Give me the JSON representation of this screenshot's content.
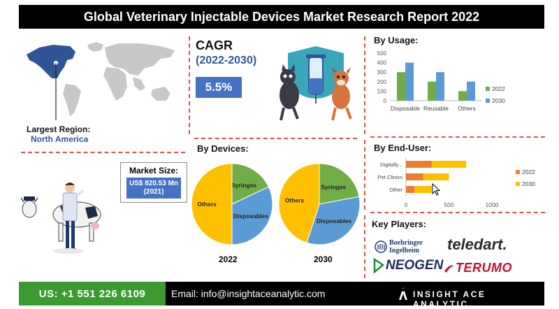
{
  "header": {
    "title": "Global Veterinary Injectable Devices Market Research Report 2022"
  },
  "region": {
    "label": "Largest Region:",
    "value": "North America"
  },
  "market": {
    "label": "Market Size:",
    "value": "US$ 820.53 Mn (2021)"
  },
  "cagr": {
    "title": "CAGR",
    "period": "(2022-2030)",
    "value": "5.5%"
  },
  "sections": {
    "usage": "By Usage:",
    "devices": "By Devices:",
    "enduser": "By End-User:",
    "players": "Key Players:"
  },
  "players": {
    "p1_line1": "Boehringer",
    "p1_line2": "Ingelheim",
    "p2": "teledart.",
    "p3": "NEOGEN",
    "p4": "TERUMO"
  },
  "footer": {
    "phone": "US: +1 551 226 6109",
    "email": "Email: info@insightaceanalytic.com",
    "brand": "INSIGHT ACE ANALYTIC"
  },
  "colors": {
    "header_bg": "#000000",
    "accent_blue": "#4472c4",
    "green": "#70ad47",
    "light_blue": "#5b9bd5",
    "orange": "#ed7d31",
    "yellow": "#ffc000",
    "footer_green": "#3c9a31",
    "divider_red": "#d9534f"
  },
  "chart_data": [
    {
      "type": "bar",
      "title": "By Usage:",
      "categories": [
        "Disposable",
        "Reusable",
        "Others"
      ],
      "ylim": [
        0,
        500
      ],
      "yticks": [
        0,
        100,
        200,
        300,
        400,
        500
      ],
      "legend": "right",
      "grid": false,
      "series": [
        {
          "name": "2022",
          "color": "#70ad47",
          "values": [
            300,
            200,
            100
          ]
        },
        {
          "name": "2030",
          "color": "#5b9bd5",
          "values": [
            400,
            300,
            200
          ]
        }
      ]
    },
    {
      "type": "bar",
      "orientation": "horizontal",
      "stacked": true,
      "title": "By End-User:",
      "categories": [
        "Digitally...",
        "Pet Clinics",
        "Other"
      ],
      "xlim": [
        0,
        1000
      ],
      "xticks": [
        0,
        500,
        1000
      ],
      "legend": "right",
      "grid": false,
      "series": [
        {
          "name": "2022",
          "color": "#ed7d31",
          "values": [
            300,
            200,
            100
          ]
        },
        {
          "name": "2030",
          "color": "#ffc000",
          "values": [
            400,
            300,
            200
          ]
        }
      ]
    },
    {
      "type": "pie",
      "title": "2022",
      "labels": [
        "Syringes",
        "Disposables",
        "Others"
      ],
      "values": [
        18,
        32,
        50
      ],
      "colors": [
        "#70ad47",
        "#5b9bd5",
        "#ffc000"
      ]
    },
    {
      "type": "pie",
      "title": "2030",
      "labels": [
        "Syringes",
        "Disposables",
        "Others"
      ],
      "values": [
        22,
        33,
        45
      ],
      "colors": [
        "#70ad47",
        "#5b9bd5",
        "#ffc000"
      ]
    }
  ]
}
